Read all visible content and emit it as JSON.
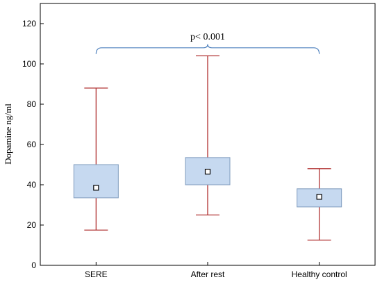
{
  "chart_data": {
    "type": "box",
    "ylabel": "Dopamine ng/ml",
    "xlabel": "",
    "ylim": [
      0,
      130
    ],
    "yticks": [
      0,
      20,
      40,
      60,
      80,
      100,
      120
    ],
    "categories": [
      "SERE",
      "After rest",
      "Healthy control"
    ],
    "boxes": [
      {
        "category": "SERE",
        "whisker_low": 17.5,
        "q1": 33.5,
        "median": 38.5,
        "q3": 50,
        "whisker_high": 88
      },
      {
        "category": "After rest",
        "whisker_low": 25,
        "q1": 40,
        "median": 46.5,
        "q3": 53.5,
        "whisker_high": 104
      },
      {
        "category": "Healthy control",
        "whisker_low": 12.5,
        "q1": 29,
        "median": 34,
        "q3": 38,
        "whisker_high": 48
      }
    ],
    "annotation": {
      "text": "p< 0.001",
      "span": [
        "SERE",
        "Healthy control"
      ],
      "y": 108
    },
    "grid": false,
    "colors": {
      "box_fill": "#c6d9f0",
      "box_stroke": "#7f9bbd",
      "whisker": "#b03030",
      "bracket": "#4f81bd"
    }
  }
}
